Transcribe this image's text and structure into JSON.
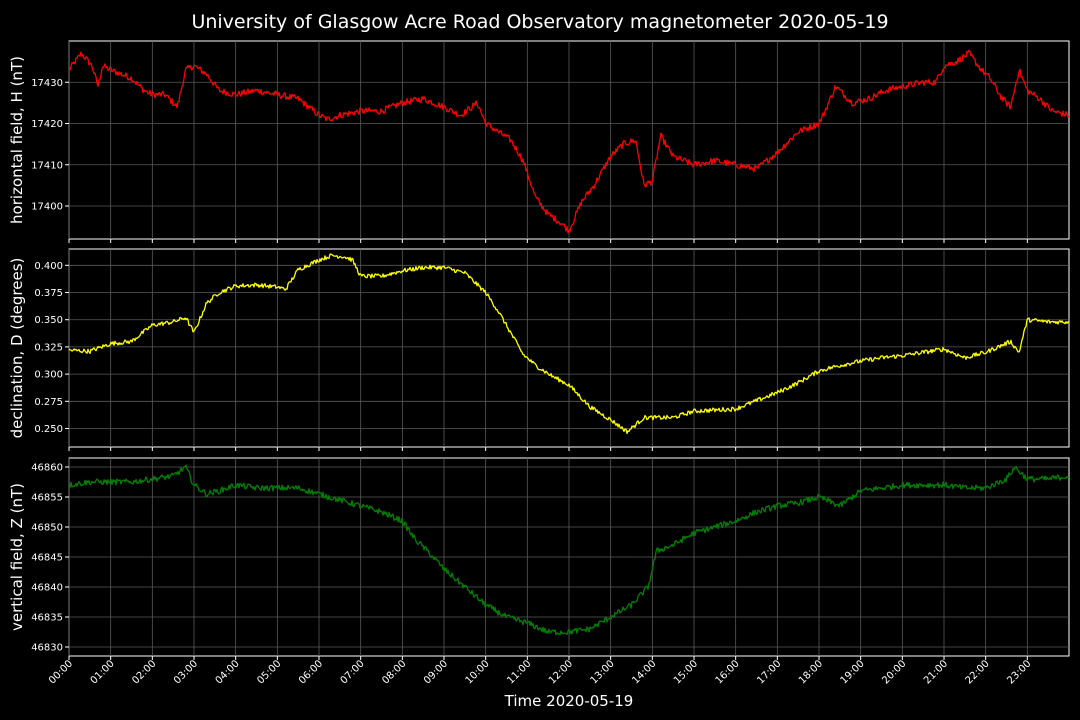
{
  "chart_data": {
    "type": "line",
    "title": "University of Glasgow Acre Road Observatory magnetometer 2020-05-19",
    "xlabel": "Time 2020-05-19",
    "x_ticks": [
      "00:00",
      "01:00",
      "02:00",
      "03:00",
      "04:00",
      "05:00",
      "06:00",
      "07:00",
      "08:00",
      "09:00",
      "10:00",
      "11:00",
      "12:00",
      "13:00",
      "14:00",
      "15:00",
      "16:00",
      "17:00",
      "18:00",
      "19:00",
      "20:00",
      "21:00",
      "22:00",
      "23:00"
    ],
    "xlim_hours": [
      0,
      24
    ],
    "grid": true,
    "panels": [
      {
        "ylabel": "horizontal field, H (nT)",
        "color": "#ff0000",
        "ylim": [
          17392,
          17440
        ],
        "y_ticks": [
          17400,
          17410,
          17420,
          17430
        ],
        "noise": 0.8,
        "x": [
          0,
          0.3,
          0.55,
          0.7,
          0.8,
          1.0,
          1.5,
          1.8,
          2.0,
          2.3,
          2.6,
          2.8,
          3.0,
          3.3,
          3.6,
          4.0,
          4.5,
          5.0,
          5.5,
          6.0,
          6.2,
          6.5,
          7.0,
          7.5,
          8.0,
          8.5,
          9.0,
          9.4,
          9.8,
          10.0,
          10.3,
          10.6,
          10.9,
          11.2,
          11.5,
          11.8,
          12.0,
          12.3,
          12.6,
          13.0,
          13.3,
          13.6,
          13.8,
          14.0,
          14.2,
          14.5,
          15.0,
          15.5,
          16.0,
          16.5,
          17.0,
          17.5,
          18.0,
          18.1,
          18.4,
          18.8,
          19.2,
          19.6,
          20.0,
          20.5,
          20.8,
          21.0,
          21.3,
          21.6,
          21.9,
          22.1,
          22.4,
          22.6,
          22.8,
          23.0,
          23.3,
          23.6,
          24.0
        ],
        "values": [
          17433,
          17437,
          17434,
          17429,
          17434,
          17433,
          17431,
          17428,
          17427,
          17427,
          17424,
          17433,
          17434,
          17432,
          17428,
          17427,
          17428,
          17427,
          17426,
          17422,
          17421,
          17422,
          17423,
          17423,
          17425,
          17426,
          17424,
          17422,
          17425,
          17420,
          17418,
          17416,
          17411,
          17402,
          17398,
          17396,
          17394,
          17401,
          17405,
          17412,
          17415,
          17416,
          17405,
          17406,
          17417,
          17412,
          17410,
          17411,
          17410,
          17409,
          17413,
          17418,
          17420,
          17422,
          17429,
          17425,
          17426,
          17428,
          17429,
          17430,
          17430,
          17434,
          17435,
          17437,
          17433,
          17431,
          17426,
          17424,
          17433,
          17428,
          17426,
          17423,
          17422
        ]
      },
      {
        "ylabel": "declination, D (degrees)",
        "color": "#ffff00",
        "ylim": [
          0.233,
          0.415
        ],
        "y_ticks": [
          0.25,
          0.275,
          0.3,
          0.325,
          0.35,
          0.375,
          0.4
        ],
        "y_tick_labels": [
          "0.250",
          "0.275",
          "0.300",
          "0.325",
          "0.350",
          "0.375",
          "0.400"
        ],
        "noise": 0.002,
        "x": [
          0,
          0.5,
          1.0,
          1.5,
          2.0,
          2.5,
          2.8,
          3.0,
          3.3,
          3.6,
          4.0,
          4.5,
          5.0,
          5.2,
          5.5,
          6.0,
          6.3,
          6.6,
          6.8,
          7.0,
          7.5,
          8.0,
          8.5,
          9.0,
          9.5,
          10.0,
          10.3,
          10.6,
          10.9,
          11.2,
          11.6,
          12.0,
          12.5,
          13.0,
          13.4,
          13.8,
          14.0,
          14.5,
          15.0,
          16.0,
          17.0,
          17.5,
          18.0,
          18.5,
          19.0,
          19.5,
          20.0,
          20.5,
          21.0,
          21.5,
          22.0,
          22.6,
          22.8,
          23.0,
          23.5,
          24.0
        ],
        "values": [
          0.322,
          0.321,
          0.328,
          0.33,
          0.345,
          0.348,
          0.352,
          0.338,
          0.365,
          0.375,
          0.381,
          0.382,
          0.38,
          0.378,
          0.396,
          0.405,
          0.409,
          0.408,
          0.405,
          0.39,
          0.39,
          0.395,
          0.398,
          0.398,
          0.393,
          0.375,
          0.358,
          0.338,
          0.318,
          0.308,
          0.298,
          0.29,
          0.27,
          0.258,
          0.247,
          0.26,
          0.26,
          0.26,
          0.266,
          0.268,
          0.283,
          0.292,
          0.303,
          0.308,
          0.312,
          0.315,
          0.317,
          0.32,
          0.323,
          0.315,
          0.32,
          0.33,
          0.32,
          0.35,
          0.348,
          0.348
        ]
      },
      {
        "ylabel": "vertical field, Z (nT)",
        "color": "#008000",
        "ylim": [
          46828.5,
          46861.5
        ],
        "y_ticks": [
          46830,
          46835,
          46840,
          46845,
          46850,
          46855,
          46860
        ],
        "noise": 0.5,
        "x": [
          0,
          0.5,
          1.0,
          1.5,
          2.0,
          2.5,
          2.8,
          3.0,
          3.3,
          3.6,
          4.0,
          4.5,
          5.0,
          5.5,
          6.0,
          6.5,
          7.0,
          7.5,
          8.0,
          8.3,
          8.6,
          9.0,
          9.5,
          10.0,
          10.5,
          11.0,
          11.5,
          12.0,
          12.5,
          13.0,
          13.5,
          13.9,
          14.1,
          14.5,
          15.0,
          15.5,
          16.0,
          16.5,
          17.0,
          17.5,
          18.0,
          18.5,
          19.0,
          19.5,
          20.0,
          20.5,
          21.0,
          21.5,
          22.0,
          22.5,
          22.7,
          23.0,
          23.5,
          24.0
        ],
        "values": [
          46857,
          46857.5,
          46857.5,
          46857.5,
          46858,
          46858.5,
          46860,
          46857,
          46855.5,
          46856,
          46857,
          46856.5,
          46856.5,
          46856.5,
          46855.5,
          46854.5,
          46853.5,
          46852.5,
          46851,
          46848,
          46846,
          46843,
          46840,
          46837,
          46835,
          46834,
          46832.5,
          46832.5,
          46833,
          46835,
          46837,
          46840,
          46846,
          46847,
          46849,
          46850,
          46851,
          46852.5,
          46853.5,
          46854,
          46855,
          46853.5,
          46856,
          46856.5,
          46857,
          46857,
          46857,
          46856.5,
          46856.5,
          46858,
          46860,
          46858,
          46858,
          46858.5
        ]
      }
    ]
  }
}
